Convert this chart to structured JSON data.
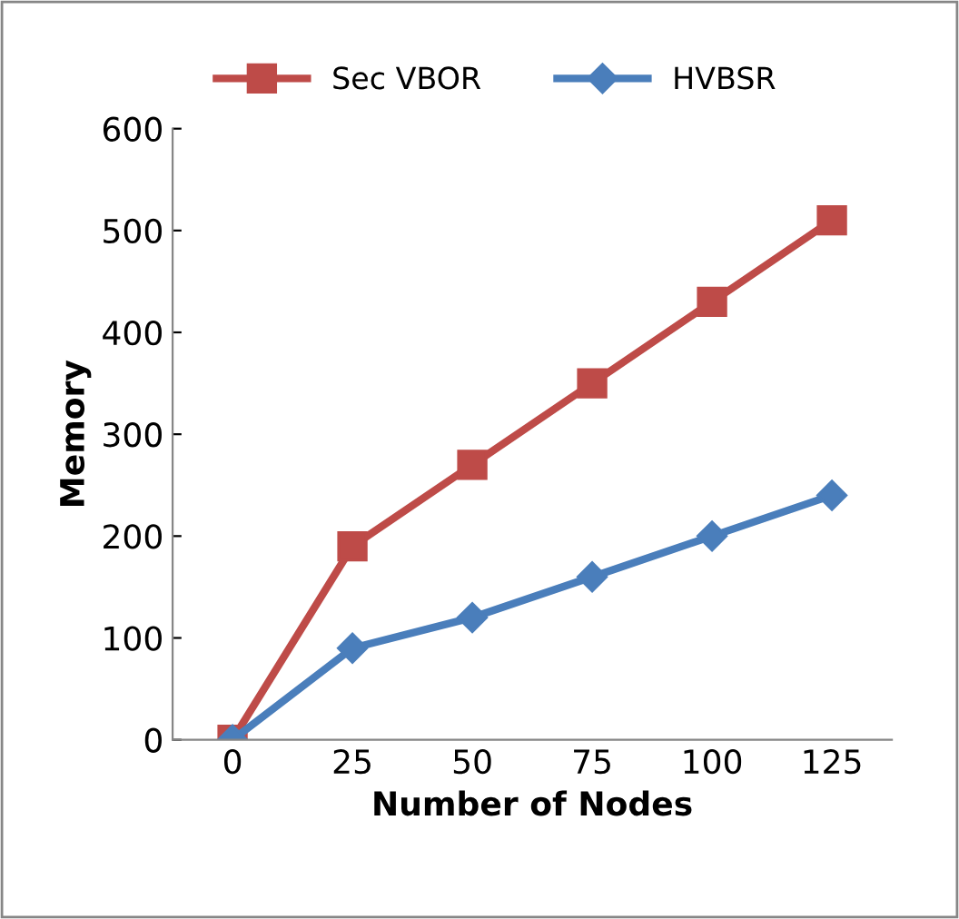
{
  "chart_data": {
    "type": "line",
    "xlabel": "Number of Nodes",
    "ylabel": "Memory",
    "categories": [
      "0",
      "25",
      "50",
      "75",
      "100",
      "125"
    ],
    "series": [
      {
        "name": "Sec VBOR",
        "color": "#be4b48",
        "marker": "square",
        "values": [
          0,
          190,
          270,
          350,
          430,
          510
        ]
      },
      {
        "name": "HVBSR",
        "color": "#4a7ebb",
        "marker": "diamond",
        "values": [
          0,
          90,
          120,
          160,
          200,
          240
        ]
      }
    ],
    "ylim": [
      0,
      600
    ],
    "yticks": [
      0,
      100,
      200,
      300,
      400,
      500,
      600
    ],
    "grid": false,
    "legend": "top",
    "line_style": "solid"
  }
}
